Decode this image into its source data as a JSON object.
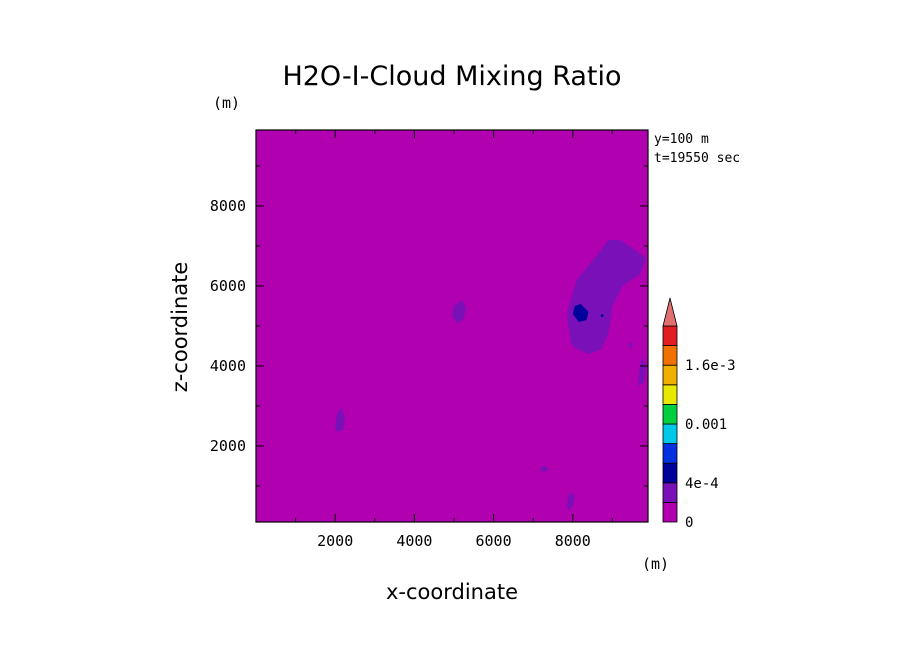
{
  "chart_data": {
    "type": "heatmap",
    "title": "H2O-I-Cloud Mixing Ratio",
    "xlabel": "x-coordinate",
    "ylabel": "z-coordinate",
    "x_unit": "(m)",
    "y_unit": "(m)",
    "xlim": [
      0,
      9900
    ],
    "ylim": [
      100,
      9900
    ],
    "x_ticks": [
      2000,
      4000,
      6000,
      8000
    ],
    "y_ticks": [
      2000,
      4000,
      6000,
      8000
    ],
    "x_tick_labels": [
      "2000",
      "4000",
      "6000",
      "8000"
    ],
    "y_tick_labels": [
      "2000",
      "4000",
      "6000",
      "8000"
    ],
    "annotations": [
      "y=100 m",
      "t=19550 sec"
    ],
    "background_level_color": "#b000b0",
    "colorbar": {
      "levels": [
        0,
        0.0002,
        0.0004,
        0.0006,
        0.0008,
        0.001,
        0.0012,
        0.0014,
        0.0016,
        0.0018,
        0.002
      ],
      "colors": [
        "#b000b0",
        "#7a10b8",
        "#00009a",
        "#0030e0",
        "#00c8e8",
        "#00d040",
        "#e8e800",
        "#f0b000",
        "#f07000",
        "#e02020"
      ],
      "extend_color": "#e07070",
      "tick_values": [
        0,
        0.0004,
        0.001,
        0.0016
      ],
      "tick_labels": [
        "0",
        "4e-4",
        "0.001",
        "1.6e-3"
      ]
    },
    "features": [
      {
        "level_color": "#7a10b8",
        "points": [
          [
            7950,
            4600
          ],
          [
            7850,
            5300
          ],
          [
            8100,
            6150
          ],
          [
            8600,
            6750
          ],
          [
            8900,
            7150
          ],
          [
            9200,
            7150
          ],
          [
            9500,
            6950
          ],
          [
            9850,
            6700
          ],
          [
            9700,
            6300
          ],
          [
            9250,
            6000
          ],
          [
            9000,
            5500
          ],
          [
            8900,
            4800
          ],
          [
            8700,
            4400
          ],
          [
            8400,
            4300
          ],
          [
            8050,
            4450
          ]
        ]
      },
      {
        "level_color": "#00009a",
        "points": [
          [
            8000,
            5300
          ],
          [
            8050,
            5500
          ],
          [
            8200,
            5550
          ],
          [
            8400,
            5350
          ],
          [
            8350,
            5150
          ],
          [
            8150,
            5100
          ]
        ]
      },
      {
        "level_color": "#00009a",
        "points": [
          [
            8700,
            5280
          ],
          [
            8760,
            5300
          ],
          [
            8780,
            5240
          ],
          [
            8720,
            5220
          ]
        ]
      },
      {
        "level_color": "#7a10b8",
        "points": [
          [
            4950,
            5250
          ],
          [
            5000,
            5500
          ],
          [
            5200,
            5650
          ],
          [
            5300,
            5450
          ],
          [
            5250,
            5200
          ],
          [
            5100,
            5050
          ]
        ]
      },
      {
        "level_color": "#7a10b8",
        "points": [
          [
            2000,
            2500
          ],
          [
            2050,
            2800
          ],
          [
            2150,
            2950
          ],
          [
            2250,
            2700
          ],
          [
            2200,
            2400
          ],
          [
            2050,
            2350
          ]
        ]
      },
      {
        "level_color": "#7a10b8",
        "points": [
          [
            7850,
            500
          ],
          [
            7880,
            700
          ],
          [
            7950,
            850
          ],
          [
            8050,
            750
          ],
          [
            8000,
            500
          ],
          [
            7900,
            400
          ]
        ]
      },
      {
        "level_color": "#7a10b8",
        "points": [
          [
            7150,
            1450
          ],
          [
            7300,
            1500
          ],
          [
            7400,
            1400
          ],
          [
            7250,
            1350
          ]
        ]
      },
      {
        "level_color": "#7a10b8",
        "points": [
          [
            9650,
            3500
          ],
          [
            9680,
            3900
          ],
          [
            9750,
            4200
          ],
          [
            9850,
            4000
          ],
          [
            9800,
            3600
          ]
        ]
      },
      {
        "level_color": "#7a10b8",
        "points": [
          [
            9400,
            4500
          ],
          [
            9450,
            4600
          ],
          [
            9520,
            4550
          ],
          [
            9480,
            4450
          ]
        ]
      }
    ]
  }
}
